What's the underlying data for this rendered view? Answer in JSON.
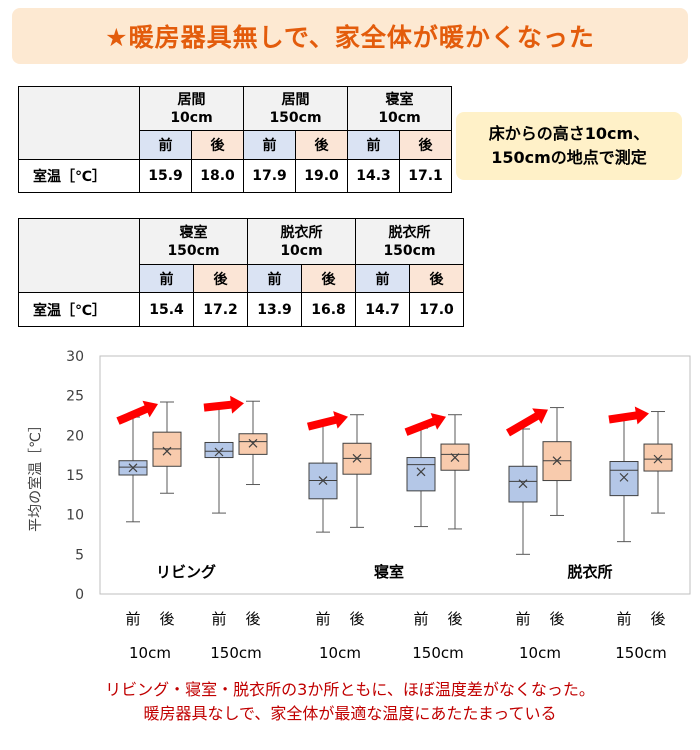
{
  "banner": {
    "title": "★暖房器具無しで、家全体が暖かくなった"
  },
  "note": {
    "line1": "床からの高さ10cm、",
    "line2": "150cmの地点で測定"
  },
  "table1": {
    "groups": [
      {
        "name": "居間",
        "height": "10cm"
      },
      {
        "name": "居間",
        "height": "150cm"
      },
      {
        "name": "寝室",
        "height": "10cm"
      }
    ],
    "before_label": "前",
    "after_label": "後",
    "row_label": "室温［℃］",
    "values": [
      "15.9",
      "18.0",
      "17.9",
      "19.0",
      "14.3",
      "17.1"
    ]
  },
  "table2": {
    "groups": [
      {
        "name": "寝室",
        "height": "150cm"
      },
      {
        "name": "脱衣所",
        "height": "10cm"
      },
      {
        "name": "脱衣所",
        "height": "150cm"
      }
    ],
    "before_label": "前",
    "after_label": "後",
    "row_label": "室温［℃］",
    "values": [
      "15.4",
      "17.2",
      "13.9",
      "16.8",
      "14.7",
      "17.0"
    ]
  },
  "conclusion": {
    "line1": "リビング・寝室・脱衣所の3か所ともに、ほぼ温度差がなくなった。",
    "line2": "暖房器具なしで、家全体が最適な温度にあたたまっている"
  },
  "colors": {
    "before": "#b4c7e7",
    "after": "#f8cbad",
    "arrow": "#ff0000",
    "banner_text": "#e35c0c",
    "conclusion_text": "#c00000"
  },
  "chart_data": {
    "type": "boxplot",
    "ylabel": "平均の室温［℃］",
    "ylim": [
      0,
      30
    ],
    "yticks": [
      0,
      5,
      10,
      15,
      20,
      25,
      30
    ],
    "grid": false,
    "room_labels": [
      "リビング",
      "寝室",
      "脱衣所"
    ],
    "pair_labels": [
      "10cm",
      "150cm",
      "10cm",
      "150cm",
      "10cm",
      "150cm"
    ],
    "before_label": "前",
    "after_label": "後",
    "boxes": [
      {
        "group": 0,
        "phase": "before",
        "min": 9.1,
        "q1": 15.0,
        "median": 16.0,
        "q3": 16.8,
        "max": 22.3,
        "mean": 15.9
      },
      {
        "group": 0,
        "phase": "after",
        "min": 12.7,
        "q1": 16.1,
        "median": 18.3,
        "q3": 20.4,
        "max": 24.2,
        "mean": 18.0
      },
      {
        "group": 1,
        "phase": "before",
        "min": 10.2,
        "q1": 17.2,
        "median": 18.0,
        "q3": 19.1,
        "max": 24.0,
        "mean": 17.9
      },
      {
        "group": 1,
        "phase": "after",
        "min": 13.8,
        "q1": 17.6,
        "median": 19.2,
        "q3": 20.2,
        "max": 24.3,
        "mean": 19.0
      },
      {
        "group": 2,
        "phase": "before",
        "min": 7.8,
        "q1": 12.0,
        "median": 14.3,
        "q3": 16.5,
        "max": 21.6,
        "mean": 14.3
      },
      {
        "group": 2,
        "phase": "after",
        "min": 8.4,
        "q1": 15.1,
        "median": 17.1,
        "q3": 19.0,
        "max": 22.6,
        "mean": 17.1
      },
      {
        "group": 3,
        "phase": "before",
        "min": 8.5,
        "q1": 13.0,
        "median": 16.3,
        "q3": 17.2,
        "max": 20.9,
        "mean": 15.4
      },
      {
        "group": 3,
        "phase": "after",
        "min": 8.2,
        "q1": 15.6,
        "median": 17.6,
        "q3": 18.9,
        "max": 22.6,
        "mean": 17.2
      },
      {
        "group": 4,
        "phase": "before",
        "min": 5.0,
        "q1": 11.6,
        "median": 14.2,
        "q3": 16.1,
        "max": 20.8,
        "mean": 13.9
      },
      {
        "group": 4,
        "phase": "after",
        "min": 9.9,
        "q1": 14.3,
        "median": 16.8,
        "q3": 19.2,
        "max": 23.5,
        "mean": 16.8
      },
      {
        "group": 5,
        "phase": "before",
        "min": 6.6,
        "q1": 12.4,
        "median": 15.6,
        "q3": 16.7,
        "max": 22.5,
        "mean": 14.7
      },
      {
        "group": 5,
        "phase": "after",
        "min": 10.2,
        "q1": 15.5,
        "median": 17.0,
        "q3": 18.9,
        "max": 23.0,
        "mean": 17.0
      }
    ]
  }
}
